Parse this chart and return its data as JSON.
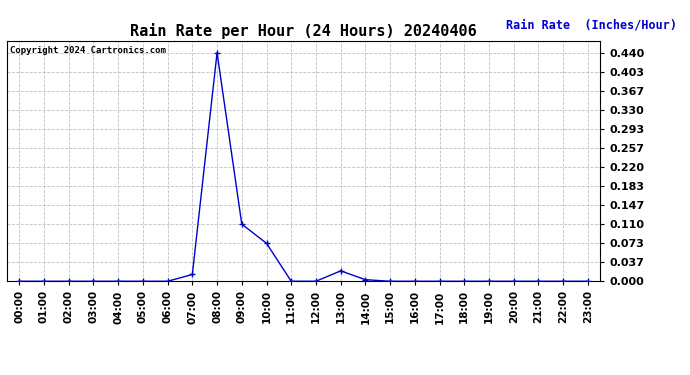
{
  "title": "Rain Rate per Hour (24 Hours) 20240406",
  "copyright": "Copyright 2024 Cartronics.com",
  "ylabel": "Rain Rate  (Inches/Hour)",
  "ylabel_color": "#0000cc",
  "fig_background_color": "#ffffff",
  "plot_background": "#ffffff",
  "line_color": "#0000cc",
  "marker_color": "#0000cc",
  "grid_color": "#c0c0c0",
  "ylim": [
    0.0,
    0.462
  ],
  "yticks": [
    0.0,
    0.037,
    0.073,
    0.11,
    0.147,
    0.183,
    0.22,
    0.257,
    0.293,
    0.33,
    0.367,
    0.403,
    0.44
  ],
  "hours": [
    "00:00",
    "01:00",
    "02:00",
    "03:00",
    "04:00",
    "05:00",
    "06:00",
    "07:00",
    "08:00",
    "09:00",
    "10:00",
    "11:00",
    "12:00",
    "13:00",
    "14:00",
    "15:00",
    "16:00",
    "17:00",
    "18:00",
    "19:00",
    "20:00",
    "21:00",
    "22:00",
    "23:00"
  ],
  "x_values": [
    0,
    1,
    2,
    3,
    4,
    5,
    6,
    7,
    8,
    9,
    10,
    11,
    12,
    13,
    14,
    15,
    16,
    17,
    18,
    19,
    20,
    21,
    22,
    23
  ],
  "y_values": [
    0.0,
    0.0,
    0.0,
    0.0,
    0.0,
    0.0,
    0.0,
    0.013,
    0.44,
    0.11,
    0.073,
    0.0,
    0.0,
    0.02,
    0.003,
    0.0,
    0.0,
    0.0,
    0.0,
    0.0,
    0.0,
    0.0,
    0.0,
    0.0
  ]
}
